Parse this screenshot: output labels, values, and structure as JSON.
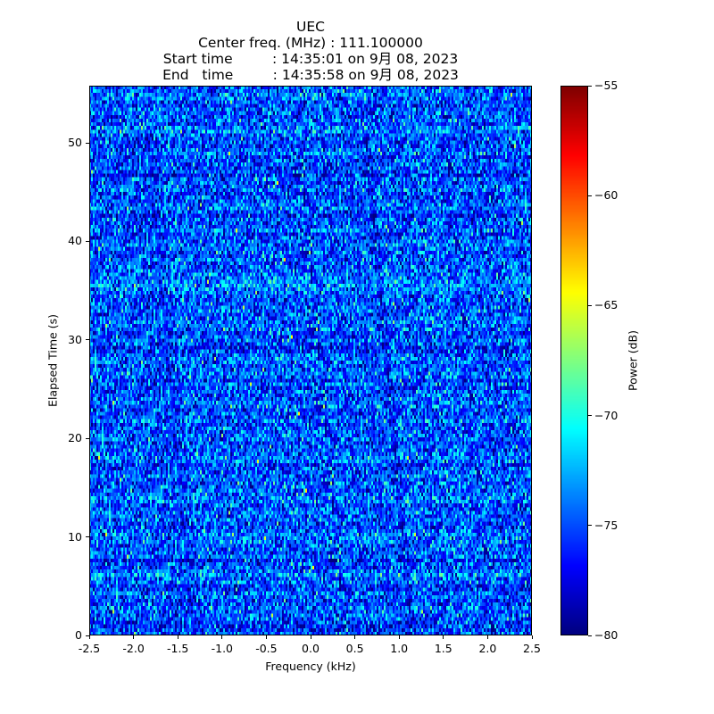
{
  "chart_data": {
    "type": "heatmap",
    "title_lines": [
      "UEC",
      "Center freq. (MHz) : 111.100000",
      "Start time         : 14:35:01 on 9月 08, 2023",
      "End   time         : 14:35:58 on 9月 08, 2023"
    ],
    "xlabel": "Frequency (kHz)",
    "ylabel": "Elapsed Time (s)",
    "xlim": [
      -2.5,
      2.5
    ],
    "ylim": [
      0,
      55.8
    ],
    "xticks": [
      "-2.5",
      "-2.0",
      "-1.5",
      "-1.0",
      "-0.5",
      "0.0",
      "0.5",
      "1.0",
      "1.5",
      "2.0",
      "2.5"
    ],
    "xtick_values": [
      -2.5,
      -2.0,
      -1.5,
      -1.0,
      -0.5,
      0.0,
      0.5,
      1.0,
      1.5,
      2.0,
      2.5
    ],
    "yticks": [
      "0",
      "10",
      "20",
      "30",
      "40",
      "50"
    ],
    "ytick_values": [
      0,
      10,
      20,
      30,
      40,
      50
    ],
    "colorbar": {
      "label": "Power (dB)",
      "colormap": "jet",
      "range": [
        -80,
        -55
      ],
      "ticks": [
        "−80",
        "−75",
        "−70",
        "−65",
        "−60",
        "−55"
      ],
      "tick_values": [
        -80,
        -75,
        -70,
        -65,
        -60,
        -55
      ]
    },
    "values_description_stats": {
      "grid_cols": 248,
      "grid_rows": 150,
      "mean_db": -75,
      "std_db": 2.6
    }
  }
}
